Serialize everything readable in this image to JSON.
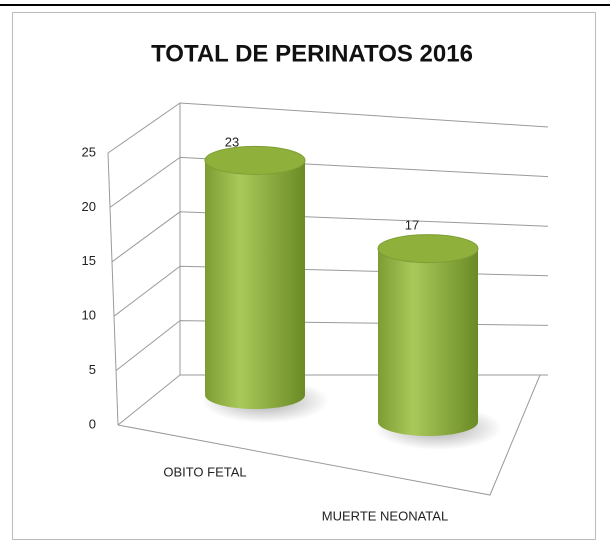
{
  "chart_data": {
    "type": "bar",
    "title": "TOTAL DE PERINATOS 2016",
    "categories": [
      "OBITO FETAL",
      "MUERTE NEONATAL"
    ],
    "values": [
      23,
      17
    ],
    "color": "#8fb13c",
    "ylim": [
      0,
      25
    ],
    "yticks": [
      0,
      5,
      10,
      15,
      20,
      25
    ],
    "grid": true
  }
}
